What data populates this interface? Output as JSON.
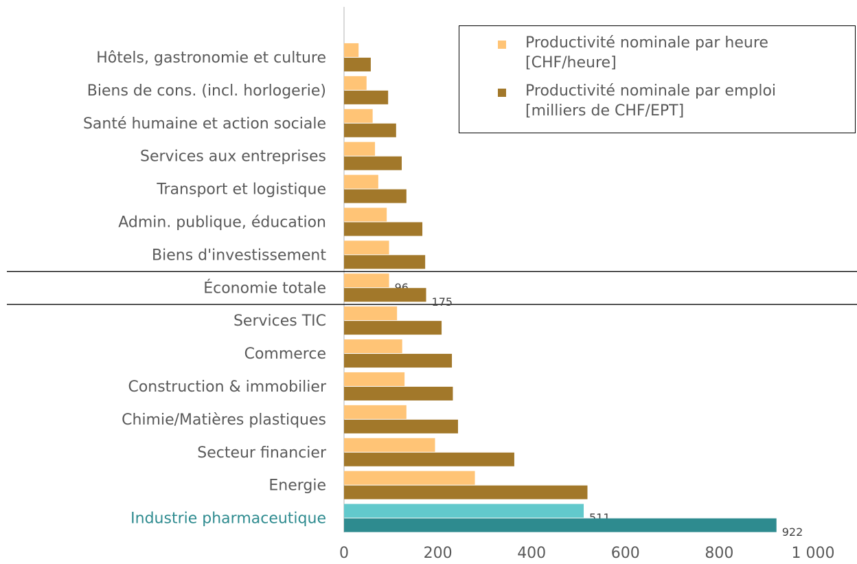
{
  "chart_data": {
    "type": "hbar",
    "categories": [
      "Hôtels, gastronomie et culture",
      "Biens de cons. (incl. horlogerie)",
      "Santé humaine et action sociale",
      "Services aux entreprises",
      "Transport et logistique",
      "Admin. publique, éducation",
      "Biens d'investissement",
      "Économie totale",
      "Services TIC",
      "Commerce",
      "Construction & immobilier",
      "Chimie/Matières plastiques",
      "Secteur financier",
      "Energie",
      "Industrie pharmaceutique"
    ],
    "series": [
      {
        "name": "Productivité nominale par heure [CHF/heure]",
        "color": "#ffc476",
        "highlight_color": "#62c9cc",
        "values": [
          31,
          48,
          61,
          66,
          73,
          91,
          96,
          96,
          113,
          124,
          129,
          133,
          194,
          279,
          511
        ]
      },
      {
        "name": "Productivité nominale par emploi [milliers de CHF/EPT]",
        "color": "#a2782a",
        "highlight_color": "#2e8b8f",
        "values": [
          57,
          94,
          111,
          123,
          133,
          167,
          173,
          175,
          208,
          230,
          232,
          243,
          363,
          519,
          922
        ]
      }
    ],
    "xlim": [
      0,
      1000
    ],
    "xticks": [
      0,
      200,
      400,
      600,
      800,
      {
        "value": 1000,
        "label": "1 000"
      }
    ],
    "highlight": "Industrie pharmaceutique",
    "highlight_label_color": "#2e8b8f",
    "labeled": [
      "Économie totale",
      "Industrie pharmaceutique"
    ],
    "separated": "Économie totale",
    "legend": "top-right"
  }
}
